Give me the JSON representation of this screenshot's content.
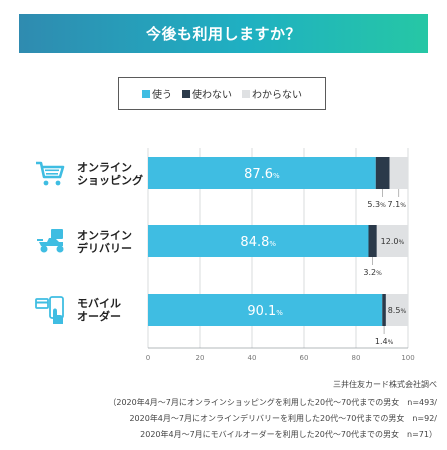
{
  "header": {
    "title": "今後も利用しますか？"
  },
  "legend": [
    {
      "label": "使う",
      "color": "#3fbde2"
    },
    {
      "label": "使わない",
      "color": "#2b3a4a"
    },
    {
      "label": "わからない",
      "color": "#dfe1e3"
    }
  ],
  "chart_data": {
    "type": "bar",
    "orientation": "horizontal",
    "stacked": true,
    "title": "今後も利用しますか？",
    "categories": [
      "オンライン\nショッピング",
      "オンライン\nデリバリー",
      "モバイル\nオーダー"
    ],
    "series": [
      {
        "name": "使う",
        "values": [
          87.6,
          84.8,
          90.1
        ],
        "color": "#3fbde2"
      },
      {
        "name": "使わない",
        "values": [
          5.3,
          3.2,
          1.4
        ],
        "color": "#2b3a4a"
      },
      {
        "name": "わからない",
        "values": [
          7.1,
          12.0,
          8.5
        ],
        "color": "#dfe1e3"
      }
    ],
    "value_labels": {
      "main": [
        "87.6",
        "84.8",
        "90.1"
      ],
      "second": [
        "5.3",
        "3.2",
        "1.4"
      ],
      "third": [
        "7.1",
        "12.0",
        "8.5"
      ],
      "unit": "%"
    },
    "xlim": [
      0,
      100
    ],
    "xticks": [
      "0",
      "20",
      "40",
      "60",
      "80",
      "100"
    ],
    "grid": true
  },
  "footnotes": [
    "三井住友カード株式会社調べ",
    "（2020年4月～7月にオンラインショッピングを利用した20代～70代までの男女　n=493/",
    "2020年4月～7月にオンラインデリバリーを利用した20代～70代までの男女　n=92/",
    "2020年4月～7月にモバイルオーダーを利用した20代～70代までの男女　n=71）"
  ]
}
